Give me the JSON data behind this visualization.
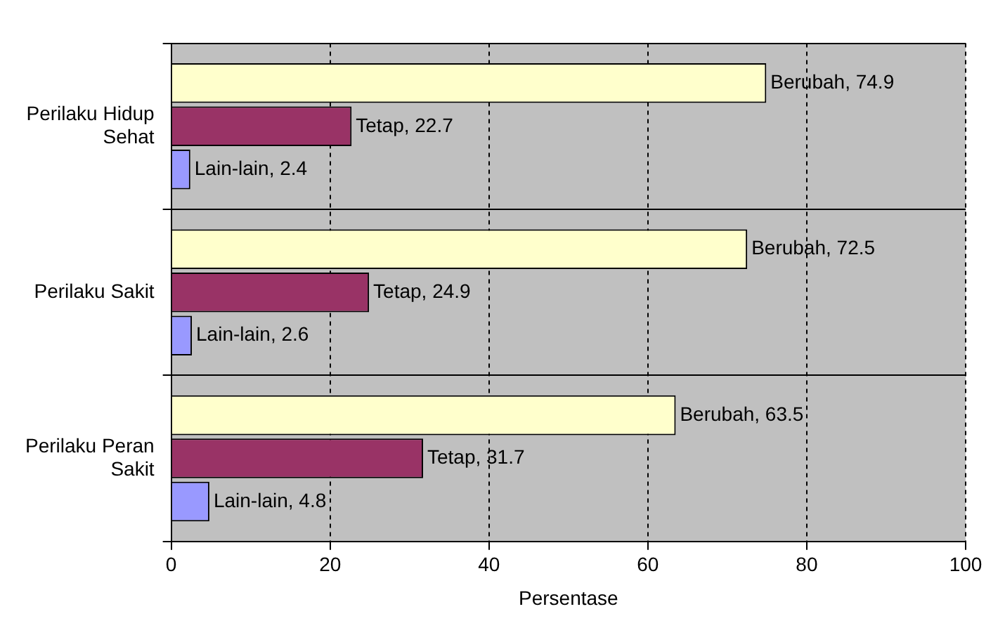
{
  "chart_data": {
    "type": "bar",
    "orientation": "horizontal",
    "categories": [
      "Perilaku Hidup Sehat",
      "Perilaku Sakit",
      "Perilaku Peran Sakit"
    ],
    "series": [
      {
        "color": "#ffffcc",
        "values": [
          74.9,
          72.5,
          63.5
        ],
        "value_labels": [
          "Berubah, 74.9",
          "Berubah, 72.5",
          "Berubah, 63.5"
        ]
      },
      {
        "color": "#993366",
        "values": [
          22.7,
          24.9,
          31.7
        ],
        "value_labels": [
          "Tetap, 22.7",
          "Tetap, 24.9",
          "Tetap, 31.7"
        ]
      },
      {
        "color": "#9999ff",
        "values": [
          2.4,
          2.6,
          4.8
        ],
        "value_labels": [
          "Lain-lain, 2.4",
          "Lain-lain, 2.6",
          "Lain-lain, 4.8"
        ]
      }
    ],
    "xlim": [
      0,
      100
    ],
    "xticks": [
      0,
      20,
      40,
      60,
      80,
      100
    ],
    "xlabel": "Persentase",
    "grid": true,
    "legend": false
  }
}
